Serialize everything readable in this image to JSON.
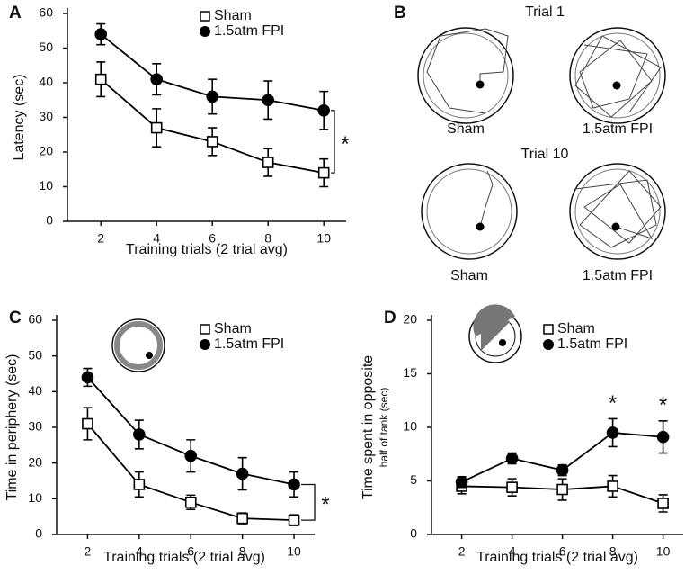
{
  "chart_data": [
    {
      "type": "line",
      "panel_label": "A",
      "xlabel": "Training trials (2 trial avg)",
      "ylabel": "Latency (sec)",
      "x": [
        2,
        4,
        6,
        8,
        10
      ],
      "xlim": [
        0.8,
        10.8
      ],
      "xticks": [
        2,
        4,
        6,
        8,
        10
      ],
      "ylim": [
        0,
        60
      ],
      "yticks": [
        0,
        10,
        20,
        30,
        40,
        50,
        60
      ],
      "series": [
        {
          "name": "Sham",
          "color": "#000000",
          "marker": "square",
          "filled": false,
          "values": [
            41,
            27,
            23,
            17,
            14
          ],
          "errors": [
            5,
            5.5,
            4,
            4,
            4
          ]
        },
        {
          "name": "1.5atm FPI",
          "color": "#000000",
          "marker": "circle",
          "filled": true,
          "values": [
            54,
            41,
            36,
            35,
            32
          ],
          "errors": [
            3,
            4.5,
            5,
            5.5,
            5.5
          ]
        }
      ],
      "bracket_label": "*"
    },
    {
      "type": "line",
      "panel_label": "C",
      "xlabel": "Training trials (2 trial avg)",
      "ylabel": "Time in periphery (sec)",
      "x": [
        2,
        4,
        6,
        8,
        10
      ],
      "xlim": [
        0.8,
        10.8
      ],
      "xticks": [
        2,
        4,
        6,
        8,
        10
      ],
      "ylim": [
        0,
        60
      ],
      "yticks": [
        0,
        10,
        20,
        30,
        40,
        50,
        60
      ],
      "series": [
        {
          "name": "Sham",
          "color": "#000000",
          "marker": "square",
          "filled": false,
          "values": [
            31,
            14,
            9,
            4.5,
            4
          ],
          "errors": [
            4.5,
            3.5,
            2,
            1.5,
            1.5
          ]
        },
        {
          "name": "1.5atm FPI",
          "color": "#000000",
          "marker": "circle",
          "filled": true,
          "values": [
            44,
            28,
            22,
            17,
            14
          ],
          "errors": [
            2.5,
            4,
            4.5,
            4.5,
            3.5
          ]
        }
      ],
      "bracket_label": "*"
    },
    {
      "type": "line",
      "panel_label": "D",
      "xlabel": "Training trials (2 trial avg)",
      "ylabel": "Time spent in opposite",
      "ylabel_sub": "half of tank (sec)",
      "x": [
        2,
        4,
        6,
        8,
        10
      ],
      "xlim": [
        0.8,
        10.8
      ],
      "xticks": [
        2,
        4,
        6,
        8,
        10
      ],
      "ylim": [
        0,
        20
      ],
      "yticks": [
        0,
        5,
        10,
        15,
        20
      ],
      "series": [
        {
          "name": "Sham",
          "color": "#000000",
          "marker": "square",
          "filled": false,
          "values": [
            4.5,
            4.4,
            4.2,
            4.5,
            2.9
          ],
          "errors": [
            0.7,
            0.8,
            1,
            1,
            0.8
          ]
        },
        {
          "name": "1.5atm FPI",
          "color": "#000000",
          "marker": "circle",
          "filled": true,
          "values": [
            4.9,
            7.1,
            6,
            9.5,
            9.1
          ],
          "errors": [
            0.5,
            0.5,
            0.5,
            1.3,
            1.5
          ]
        }
      ],
      "significance": [
        {
          "text": "*",
          "x": 8
        },
        {
          "text": "*",
          "x": 10
        }
      ]
    }
  ],
  "swim_paths": {
    "panel_label": "B",
    "rows": [
      {
        "title": "Trial 1",
        "labels": [
          "Sham",
          "1.5atm FPI"
        ]
      },
      {
        "title": "Trial 10",
        "labels": [
          "Sham",
          "1.5atm FPI"
        ]
      }
    ]
  }
}
